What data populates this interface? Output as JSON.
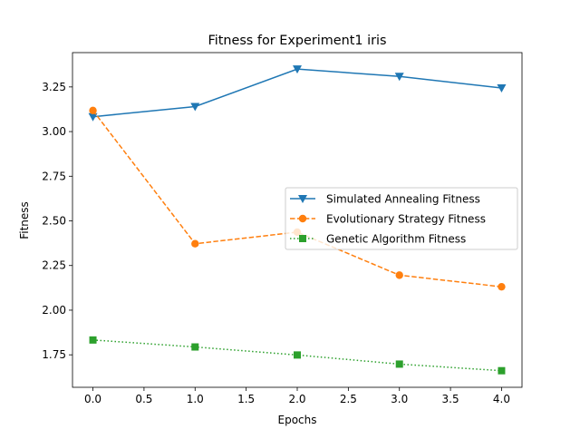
{
  "chart_data": {
    "type": "line",
    "title": "Fitness for Experiment1 iris",
    "xlabel": "Epochs",
    "ylabel": "Fitness",
    "x": [
      0,
      1,
      2,
      3,
      4
    ],
    "xlim": [
      -0.2,
      4.2
    ],
    "ylim": [
      1.5681,
      3.4422
    ],
    "xticks": [
      0.0,
      0.5,
      1.0,
      1.5,
      2.0,
      2.5,
      3.0,
      3.5,
      4.0
    ],
    "xtick_labels": [
      "0.0",
      "0.5",
      "1.0",
      "1.5",
      "2.0",
      "2.5",
      "3.0",
      "3.5",
      "4.0"
    ],
    "yticks": [
      1.75,
      2.0,
      2.25,
      2.5,
      2.75,
      3.0,
      3.25
    ],
    "ytick_labels": [
      "1.75",
      "2.00",
      "2.25",
      "2.50",
      "2.75",
      "3.00",
      "3.25"
    ],
    "grid": false,
    "legend_position": "center-right",
    "series": [
      {
        "name": "Simulated Annealing Fitness",
        "values": [
          3.083,
          3.14,
          3.35,
          3.309,
          3.244
        ],
        "color": "#1f77b4",
        "linestyle": "solid",
        "marker": "triangle-down"
      },
      {
        "name": "Evolutionary Strategy Fitness",
        "values": [
          3.118,
          2.372,
          2.437,
          2.196,
          2.131
        ],
        "color": "#ff7f0e",
        "linestyle": "dashed",
        "marker": "circle"
      },
      {
        "name": "Genetic Algorithm Fitness",
        "values": [
          1.833,
          1.794,
          1.749,
          1.698,
          1.661
        ],
        "color": "#2ca02c",
        "linestyle": "dotted",
        "marker": "square"
      }
    ]
  }
}
